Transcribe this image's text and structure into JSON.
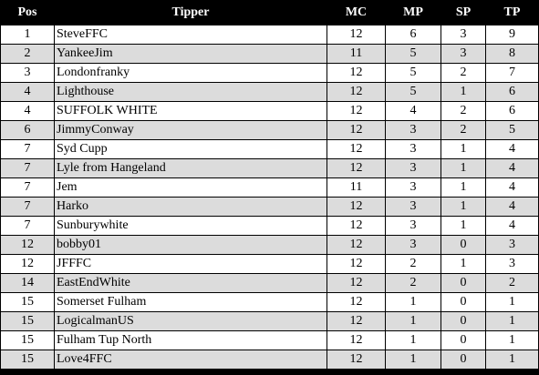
{
  "headers": {
    "pos": "Pos",
    "tipper": "Tipper",
    "mc": "MC",
    "mp": "MP",
    "sp": "SP",
    "tp": "TP"
  },
  "rows": [
    {
      "pos": "1",
      "tipper": "SteveFFC",
      "mc": "12",
      "mp": "6",
      "sp": "3",
      "tp": "9"
    },
    {
      "pos": "2",
      "tipper": "YankeeJim",
      "mc": "11",
      "mp": "5",
      "sp": "3",
      "tp": "8"
    },
    {
      "pos": "3",
      "tipper": "Londonfranky",
      "mc": "12",
      "mp": "5",
      "sp": "2",
      "tp": "7"
    },
    {
      "pos": "4",
      "tipper": "Lighthouse",
      "mc": "12",
      "mp": "5",
      "sp": "1",
      "tp": "6"
    },
    {
      "pos": "4",
      "tipper": "SUFFOLK WHITE",
      "mc": "12",
      "mp": "4",
      "sp": "2",
      "tp": "6"
    },
    {
      "pos": "6",
      "tipper": "JimmyConway",
      "mc": "12",
      "mp": "3",
      "sp": "2",
      "tp": "5"
    },
    {
      "pos": "7",
      "tipper": "Syd Cupp",
      "mc": "12",
      "mp": "3",
      "sp": "1",
      "tp": "4"
    },
    {
      "pos": "7",
      "tipper": "Lyle from Hangeland",
      "mc": "12",
      "mp": "3",
      "sp": "1",
      "tp": "4"
    },
    {
      "pos": "7",
      "tipper": "Jem",
      "mc": "11",
      "mp": "3",
      "sp": "1",
      "tp": "4"
    },
    {
      "pos": "7",
      "tipper": "Harko",
      "mc": "12",
      "mp": "3",
      "sp": "1",
      "tp": "4"
    },
    {
      "pos": "7",
      "tipper": "Sunburywhite",
      "mc": "12",
      "mp": "3",
      "sp": "1",
      "tp": "4"
    },
    {
      "pos": "12",
      "tipper": "bobby01",
      "mc": "12",
      "mp": "3",
      "sp": "0",
      "tp": "3"
    },
    {
      "pos": "12",
      "tipper": "JFFFC",
      "mc": "12",
      "mp": "2",
      "sp": "1",
      "tp": "3"
    },
    {
      "pos": "14",
      "tipper": "EastEndWhite",
      "mc": "12",
      "mp": "2",
      "sp": "0",
      "tp": "2"
    },
    {
      "pos": "15",
      "tipper": "Somerset Fulham",
      "mc": "12",
      "mp": "1",
      "sp": "0",
      "tp": "1"
    },
    {
      "pos": "15",
      "tipper": "LogicalmanUS",
      "mc": "12",
      "mp": "1",
      "sp": "0",
      "tp": "1"
    },
    {
      "pos": "15",
      "tipper": "Fulham Tup North",
      "mc": "12",
      "mp": "1",
      "sp": "0",
      "tp": "1"
    },
    {
      "pos": "15",
      "tipper": "Love4FFC",
      "mc": "12",
      "mp": "1",
      "sp": "0",
      "tp": "1"
    }
  ],
  "colors": {
    "header_bg": "#000000",
    "header_text": "#ffffff",
    "row_odd_bg": "#ffffff",
    "row_even_bg": "#dcdcdc",
    "grid_lines": "#000000"
  }
}
